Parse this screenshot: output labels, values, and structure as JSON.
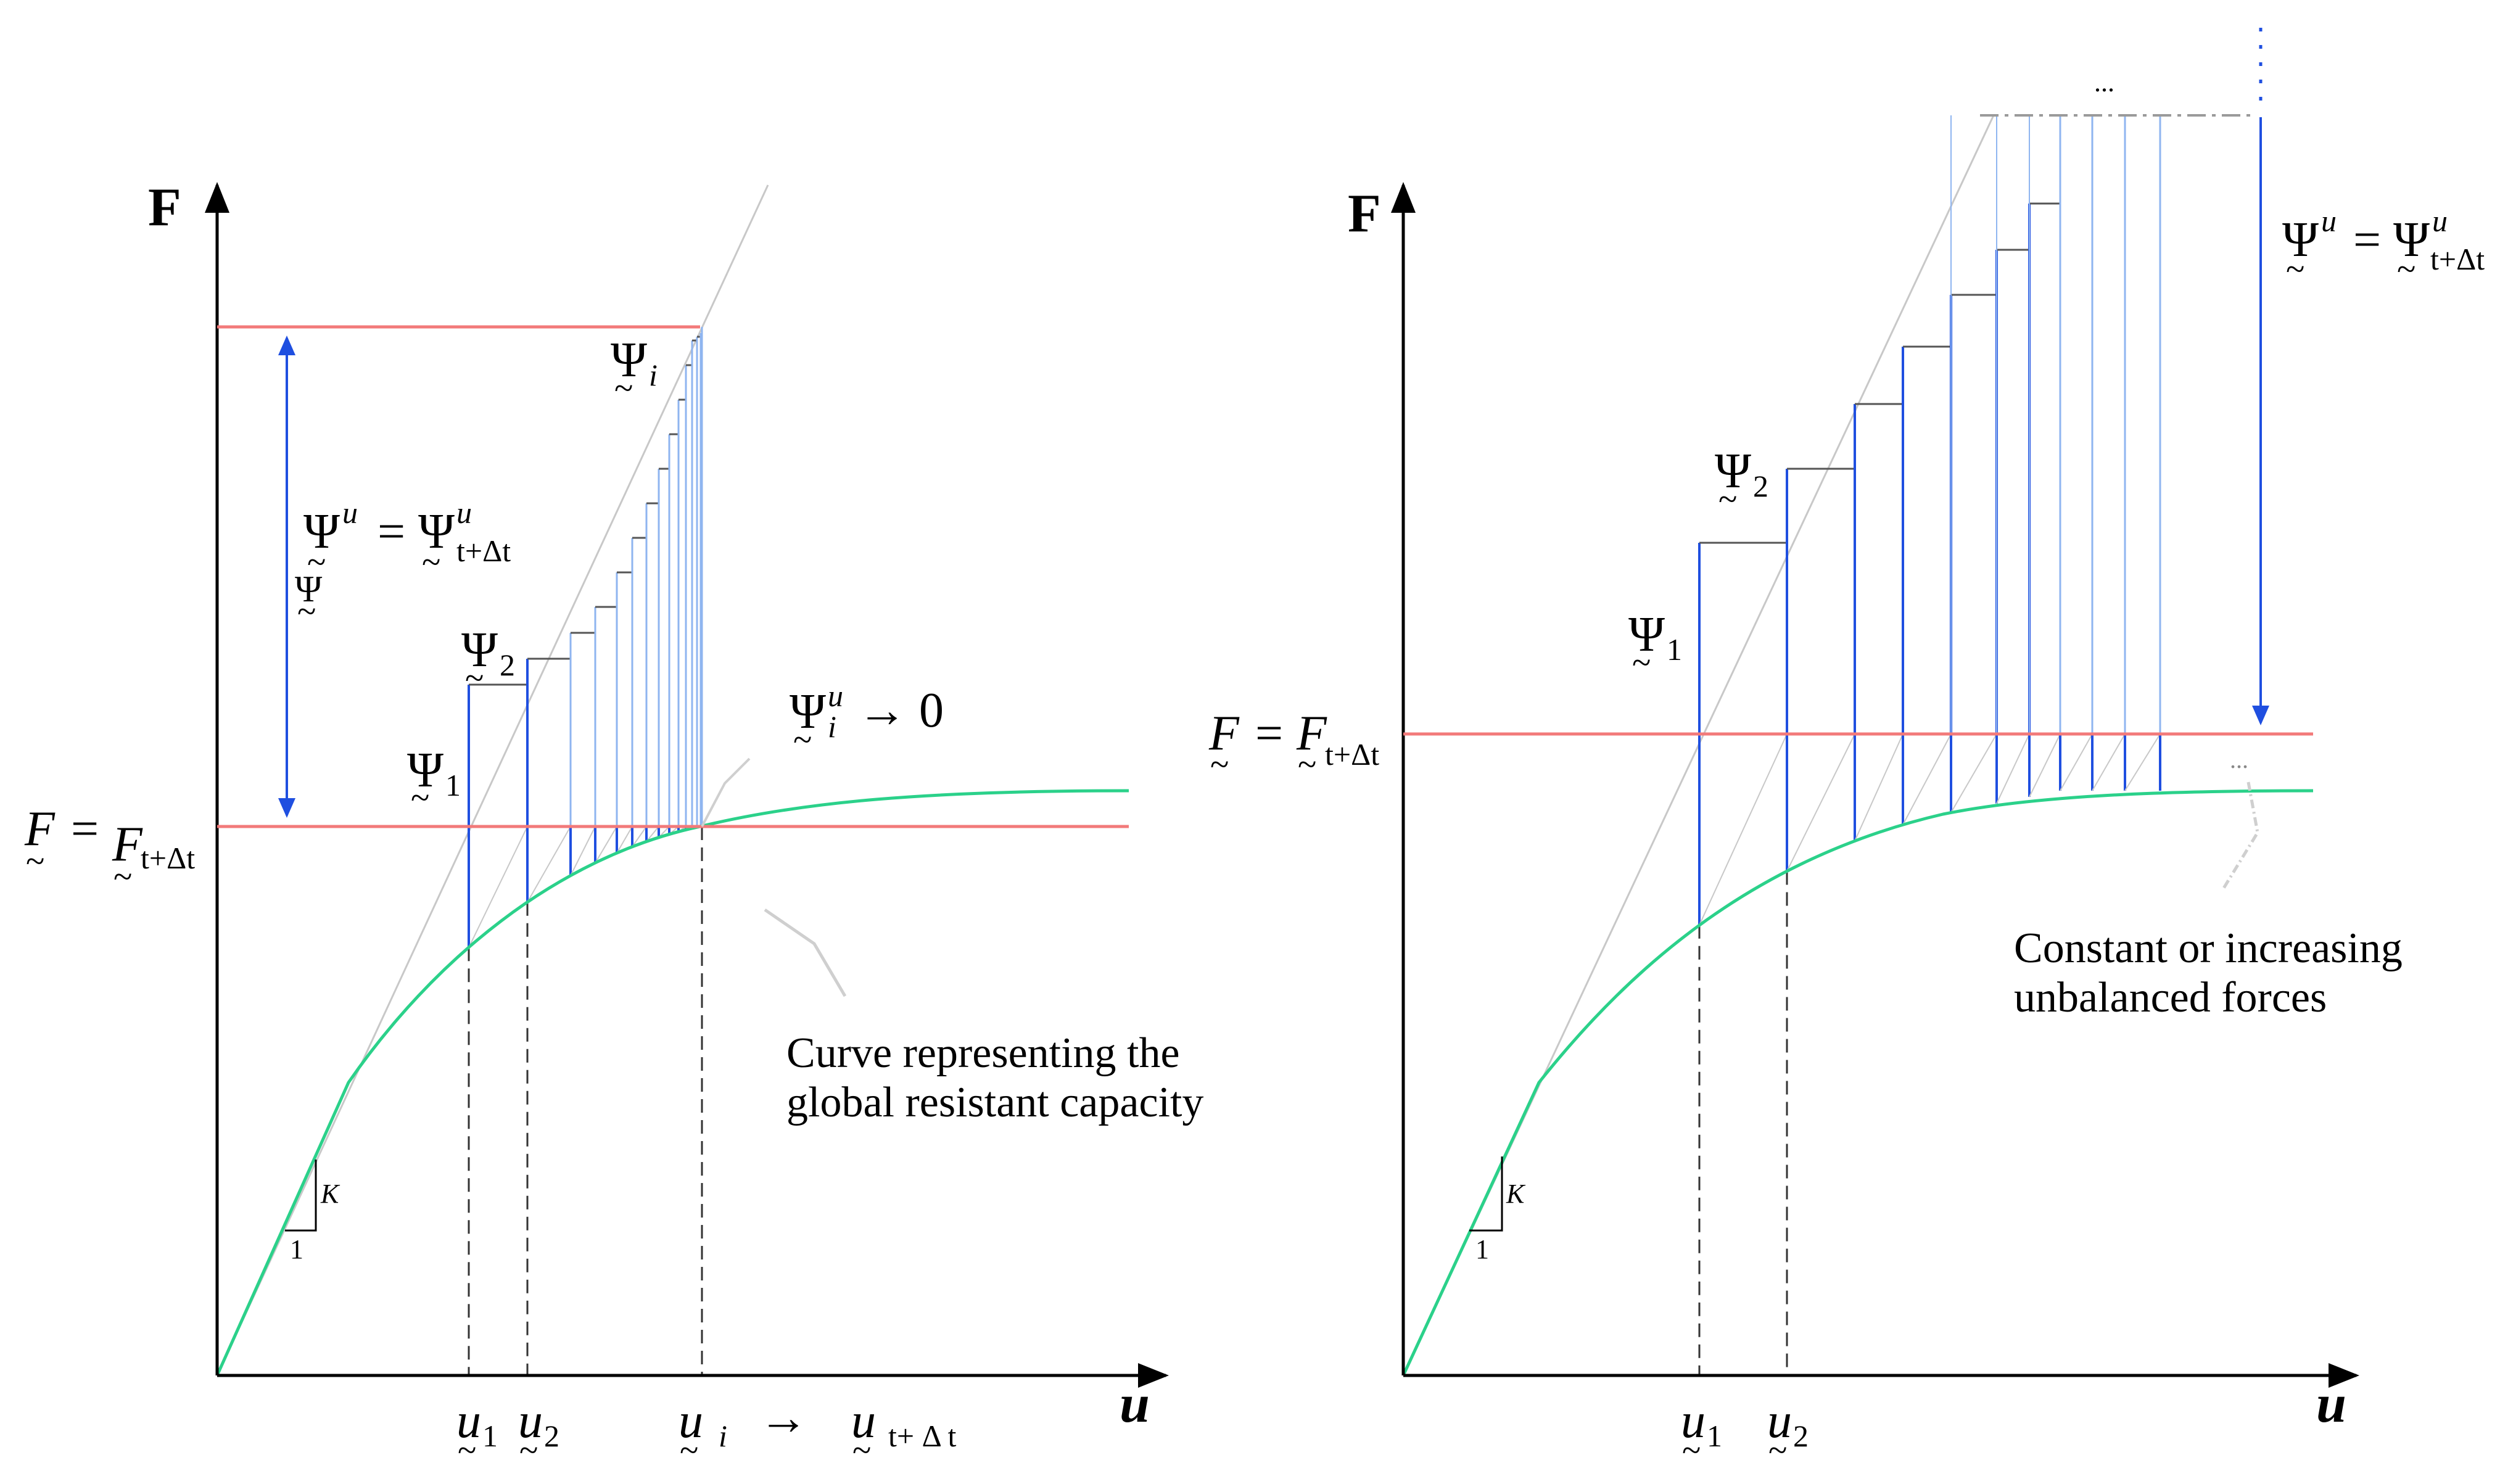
{
  "colors": {
    "axis": "#000000",
    "red_line": "#f27a7a",
    "curve": "#2bd18a",
    "blue": "#1f4fe0",
    "blue_light": "#8fb5f0",
    "step_dark": "#555555",
    "grid_gray": "#c8c8c8",
    "dashed": "#333333",
    "arrow_blue": "#1f4fe0"
  },
  "left": {
    "y_axis_label": "F",
    "x_axis_label": "u",
    "f_label": {
      "lhs": "F",
      "eq": "=",
      "rhs": "F",
      "rhs_sub": "t+Δt"
    },
    "psi_u_label": {
      "lhs": "Ψ",
      "lhs_sup": "u",
      "eq": "=",
      "rhs": "Ψ",
      "rhs_sup": "u",
      "rhs_sub": "t+Δt"
    },
    "psi_side": "Ψ",
    "psi_1": {
      "sym": "Ψ",
      "sub": "1"
    },
    "psi_2": {
      "sym": "Ψ",
      "sub": "2"
    },
    "psi_i": {
      "sym": "Ψ",
      "sub": "i"
    },
    "psi_i_zero": {
      "sym": "Ψ",
      "sup": "u",
      "sub": "i",
      "arrow": "→",
      "value": "0"
    },
    "u1": {
      "sym": "u",
      "sub": "1"
    },
    "u2": {
      "sym": "u",
      "sub": "2"
    },
    "ui": {
      "sym": "u",
      "sub": "i"
    },
    "u_arrow": "→",
    "u_final": {
      "sym": "u",
      "sub": "t+ Δ t"
    },
    "slope_k": "K",
    "slope_one": "1",
    "curve_note_line1": "Curve representing the",
    "curve_note_line2": "global resistant capacity"
  },
  "right": {
    "y_axis_label": "F",
    "x_axis_label": "u",
    "f_label": {
      "lhs": "F",
      "eq": "=",
      "rhs": "F",
      "rhs_sub": "t+Δt"
    },
    "psi_u_label": {
      "lhs": "Ψ",
      "lhs_sup": "u",
      "eq": "=",
      "rhs": "Ψ",
      "rhs_sup": "u",
      "rhs_sub": "t+Δt"
    },
    "psi_1": {
      "sym": "Ψ",
      "sub": "1"
    },
    "psi_2": {
      "sym": "Ψ",
      "sub": "2"
    },
    "u1": {
      "sym": "u",
      "sub": "1"
    },
    "u2": {
      "sym": "u",
      "sub": "2"
    },
    "slope_k": "K",
    "slope_one": "1",
    "top_ellipsis": "...",
    "side_ellipsis": "...",
    "note_line1": "Constant or increasing",
    "note_line2": "unbalanced forces"
  }
}
